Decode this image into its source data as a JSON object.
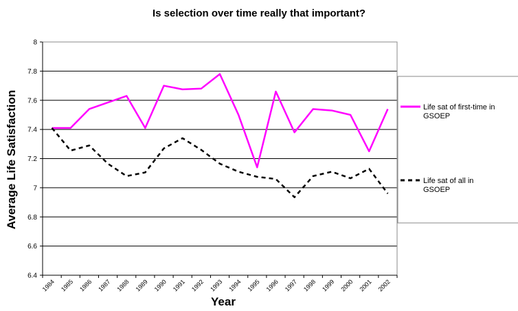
{
  "chart_data": {
    "type": "line",
    "title": "Is selection over time really that important?",
    "x_label": "Year",
    "y_label": "Average Life Satisfaction",
    "categories": [
      "1984",
      "1985",
      "1986",
      "1987",
      "1988",
      "1989",
      "1990",
      "1991",
      "1992",
      "1993",
      "1994",
      "1995",
      "1996",
      "1997",
      "1998",
      "1999",
      "2000",
      "2001",
      "2002"
    ],
    "series": [
      {
        "name": "Life sat of first-time in GSOEP",
        "color": "#ff00ff",
        "dash": false,
        "values": [
          7.41,
          7.41,
          7.54,
          7.585,
          7.63,
          7.41,
          7.7,
          7.675,
          7.68,
          7.78,
          7.5,
          7.14,
          7.66,
          7.38,
          7.54,
          7.53,
          7.5,
          7.25,
          7.54
        ]
      },
      {
        "name": "Life sat of all in GSOEP",
        "color": "#000000",
        "dash": true,
        "values": [
          7.41,
          7.255,
          7.29,
          7.165,
          7.08,
          7.105,
          7.27,
          7.34,
          7.26,
          7.165,
          7.11,
          7.075,
          7.06,
          6.935,
          7.08,
          7.11,
          7.065,
          7.13,
          6.96
        ]
      }
    ],
    "ylim": [
      6.4,
      8
    ],
    "yticks": [
      6.4,
      6.6,
      6.8,
      7,
      7.2,
      7.4,
      7.6,
      7.8,
      8
    ],
    "grid": true,
    "legend": "right"
  }
}
